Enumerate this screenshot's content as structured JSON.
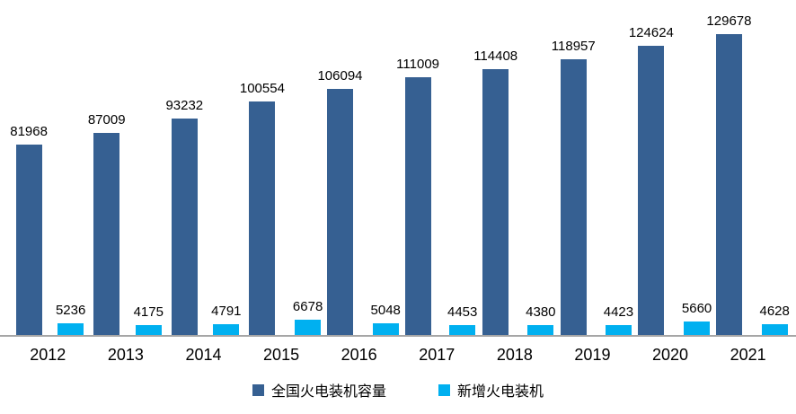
{
  "chart_data": {
    "type": "bar",
    "title": "",
    "xlabel": "",
    "ylabel": "",
    "categories": [
      "2012",
      "2013",
      "2014",
      "2015",
      "2016",
      "2017",
      "2018",
      "2019",
      "2020",
      "2021"
    ],
    "series": [
      {
        "name": "全国火电装机容量",
        "color": "#366092",
        "values": [
          81968,
          87009,
          93232,
          100554,
          106094,
          111009,
          114408,
          118957,
          124624,
          129678
        ]
      },
      {
        "name": "新增火电装机",
        "color": "#00B0F0",
        "values": [
          5236,
          4175,
          4791,
          6678,
          5048,
          4453,
          4380,
          4423,
          5660,
          4628
        ]
      }
    ],
    "data_labels": true,
    "grid": false,
    "axes_visible": "x-only",
    "axis_line_color": "#a6a6a6",
    "legend_position": "bottom",
    "ylim": [
      0,
      129678
    ]
  }
}
